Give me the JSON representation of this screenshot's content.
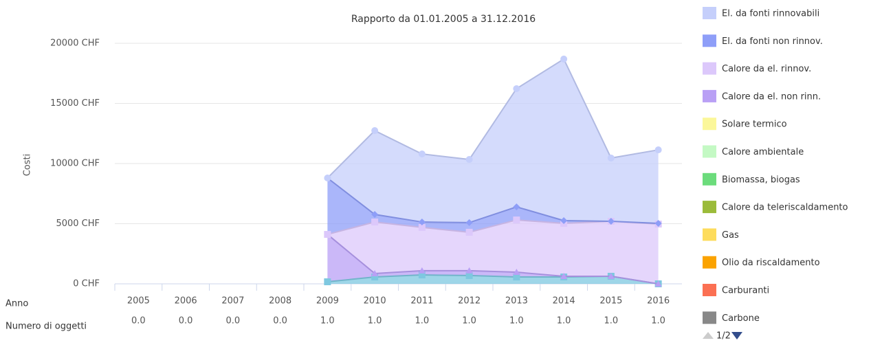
{
  "chart_data": {
    "type": "area",
    "stacked": true,
    "title": "Rapporto da 01.01.2005 a 31.12.2016",
    "y_label": "Costi",
    "categories": [
      "2005",
      "2006",
      "2007",
      "2008",
      "2009",
      "2010",
      "2011",
      "2012",
      "2013",
      "2014",
      "2015",
      "2016"
    ],
    "ylim": [
      0,
      20000
    ],
    "yticks": [
      {
        "value": 0,
        "label": "0 CHF"
      },
      {
        "value": 5000,
        "label": "5000 CHF"
      },
      {
        "value": 10000,
        "label": "10000 CHF"
      },
      {
        "value": 15000,
        "label": "15000 CHF"
      },
      {
        "value": 20000,
        "label": "20000 CHF"
      }
    ],
    "grid": true,
    "legend": "right",
    "legend_page": "1/2",
    "series": [
      {
        "name": "El. da fonti rinnovabili",
        "color": "#c5cffb",
        "marker": "circle",
        "values": [
          null,
          null,
          null,
          null,
          0,
          6970,
          5660,
          5250,
          9830,
          13430,
          5260,
          6110
        ]
      },
      {
        "name": "El. da fonti non rinnov.",
        "color": "#8e9ef8",
        "marker": "diamond",
        "values": [
          null,
          null,
          null,
          null,
          4690,
          630,
          450,
          800,
          1090,
          230,
          0,
          60
        ]
      },
      {
        "name": "Calore da el. rinnov.",
        "color": "#dcc8fb",
        "marker": "square",
        "values": [
          null,
          null,
          null,
          null,
          0,
          4280,
          3600,
          3200,
          4340,
          4400,
          4570,
          4970
        ]
      },
      {
        "name": "Calore da el. non rinn.",
        "color": "#b9a0f5",
        "marker": "triangle",
        "values": [
          null,
          null,
          null,
          null,
          3940,
          290,
          350,
          400,
          400,
          60,
          0,
          0
        ]
      },
      {
        "name": "Solare termico",
        "color": "#fbf79a"
      },
      {
        "name": "Calore ambientale",
        "color": "#c4f9c4"
      },
      {
        "name": "Biomassa, biogas",
        "color": "#6cdc7c"
      },
      {
        "name": "Calore da teleriscaldamento",
        "color": "#9bbb3a"
      },
      {
        "name": "Gas",
        "color": "#fddc5c"
      },
      {
        "name": "Olio da riscaldamento",
        "color": "#fba300"
      },
      {
        "name": "Carburanti",
        "color": "#fb7053"
      },
      {
        "name": "Carbone",
        "color": "#888888"
      },
      {
        "color": "#7ec8e0",
        "marker": "square",
        "values": [
          null,
          null,
          null,
          null,
          170,
          570,
          740,
          690,
          570,
          570,
          630,
          0
        ]
      }
    ]
  },
  "table": {
    "row_labels": [
      "Anno",
      "Numero di oggetti"
    ],
    "counts": [
      "0.0",
      "0.0",
      "0.0",
      "0.0",
      "1.0",
      "1.0",
      "1.0",
      "1.0",
      "1.0",
      "1.0",
      "1.0",
      "1.0"
    ]
  }
}
